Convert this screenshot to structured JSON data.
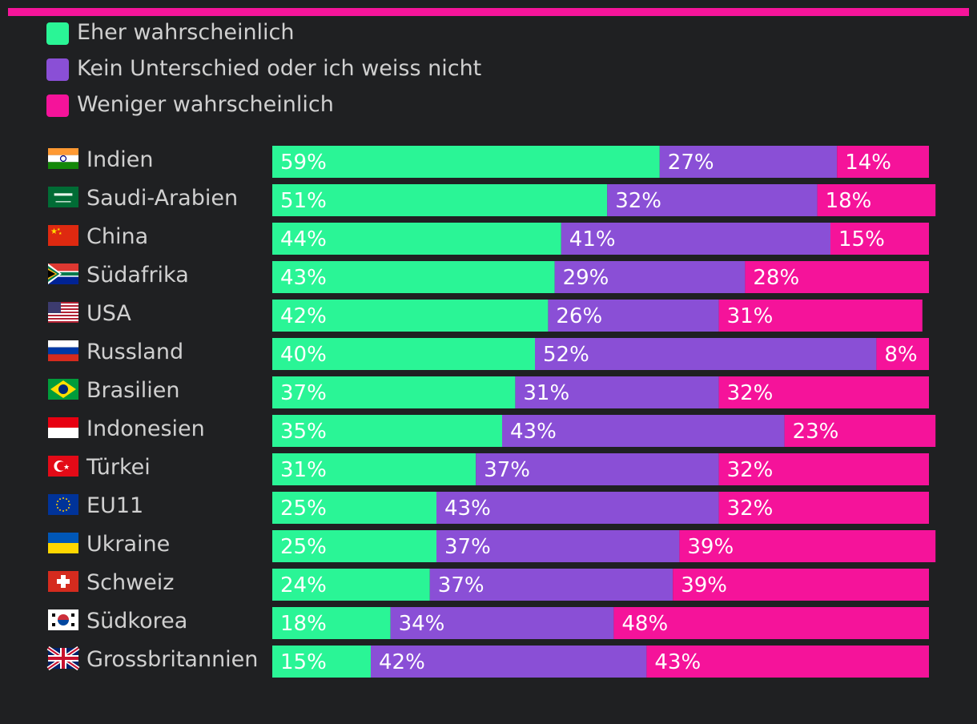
{
  "colors": {
    "background": "#1f2022",
    "top_rule": "#f5159a",
    "likely": "#2af596",
    "neutral": "#8a4fd6",
    "less": "#f5139a"
  },
  "legend": [
    {
      "key": "likely",
      "label": "Eher wahrscheinlich"
    },
    {
      "key": "neutral",
      "label": "Kein Unterschied oder ich weiss nicht"
    },
    {
      "key": "less",
      "label": "Weniger wahrscheinlich"
    }
  ],
  "chart_data": {
    "type": "bar",
    "orientation": "horizontal",
    "stacked": true,
    "unit": "%",
    "categories": [
      "Indien",
      "Saudi-Arabien",
      "China",
      "Südafrika",
      "USA",
      "Russland",
      "Brasilien",
      "Indonesien",
      "Türkei",
      "EU11",
      "Ukraine",
      "Schweiz",
      "Südkorea",
      "Grossbritannien"
    ],
    "flags": [
      "flag-india",
      "flag-saudi-arabia",
      "flag-china",
      "flag-south-africa",
      "flag-usa",
      "flag-russia",
      "flag-brazil",
      "flag-indonesia",
      "flag-turkey",
      "flag-eu",
      "flag-ukraine",
      "flag-switzerland",
      "flag-south-korea",
      "flag-uk"
    ],
    "series": [
      {
        "name": "Eher wahrscheinlich",
        "key": "likely",
        "values": [
          59,
          51,
          44,
          43,
          42,
          40,
          37,
          35,
          31,
          25,
          25,
          24,
          18,
          15
        ]
      },
      {
        "name": "Kein Unterschied oder ich weiss nicht",
        "key": "neutral",
        "values": [
          27,
          32,
          41,
          29,
          26,
          52,
          31,
          43,
          37,
          43,
          37,
          37,
          34,
          42
        ]
      },
      {
        "name": "Weniger wahrscheinlich",
        "key": "less",
        "values": [
          14,
          18,
          15,
          28,
          31,
          8,
          32,
          23,
          32,
          32,
          39,
          39,
          48,
          43
        ]
      }
    ],
    "xlim": [
      0,
      100
    ]
  }
}
